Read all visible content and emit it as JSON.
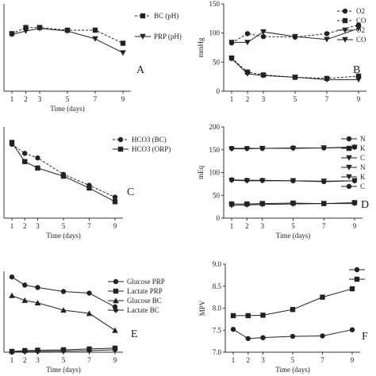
{
  "chart_data": [
    {
      "panel": "A",
      "type": "line",
      "xlabel": "Time (days)",
      "ylabel": "",
      "x": [
        1,
        2,
        3,
        5,
        7,
        9
      ],
      "ylim": [
        0,
        10
      ],
      "yticks": [],
      "legend_position": "top-right",
      "series": [
        {
          "name": "BC (pH)",
          "marker": "square",
          "dash": "dashed",
          "values": [
            6.6,
            7.3,
            7.3,
            7.0,
            7.0,
            5.5
          ]
        },
        {
          "name": "PRP (pH)",
          "marker": "triangle-down",
          "dash": "solid",
          "values": [
            6.5,
            6.9,
            7.2,
            6.9,
            6.0,
            4.4
          ]
        }
      ]
    },
    {
      "panel": "B",
      "type": "line",
      "xlabel": "",
      "ylabel": "mmHg",
      "x": [
        1,
        2,
        3,
        5,
        7,
        9
      ],
      "ylim": [
        0,
        150
      ],
      "yticks": [
        0,
        50,
        100,
        150
      ],
      "legend_position": "top-right",
      "series": [
        {
          "name": "O2",
          "marker": "circle",
          "dash": "dashed",
          "values": [
            83,
            99,
            94,
            93,
            99,
            114
          ]
        },
        {
          "name": "CO",
          "marker": "square",
          "dash": "dashed",
          "values": [
            57,
            33,
            28,
            24,
            22,
            26
          ]
        },
        {
          "name": "O2",
          "marker": "triangle-down",
          "dash": "solid",
          "values": [
            84,
            84,
            102,
            94,
            89,
            108
          ]
        },
        {
          "name": "CO",
          "marker": "triangle-down",
          "dash": "solid",
          "values": [
            56,
            30,
            27,
            24,
            20,
            20
          ]
        }
      ]
    },
    {
      "panel": "C",
      "type": "line",
      "xlabel": "Time (days)",
      "ylabel": "",
      "x": [
        1,
        2,
        3,
        5,
        7,
        9
      ],
      "ylim": [
        0,
        10
      ],
      "yticks": [],
      "legend_position": "top-right",
      "series": [
        {
          "name": "HCO3 (BC)",
          "marker": "circle",
          "dash": "dashed",
          "values": [
            8.1,
            7.1,
            6.6,
            4.8,
            3.6,
            2.3
          ]
        },
        {
          "name": "HCO3 (ORP)",
          "marker": "square",
          "dash": "solid",
          "values": [
            8.3,
            6.2,
            5.5,
            4.6,
            3.3,
            1.8
          ]
        }
      ]
    },
    {
      "panel": "D",
      "type": "line",
      "xlabel": "Time (days)",
      "ylabel": "mEq",
      "x": [
        1,
        2,
        3,
        5,
        7,
        9
      ],
      "ylim": [
        0,
        200
      ],
      "yticks": [
        0,
        50,
        100,
        150,
        200
      ],
      "legend_position": "top-right",
      "series": [
        {
          "name": "N",
          "marker": "circle",
          "dash": "solid",
          "values": [
            153,
            153,
            153,
            154,
            154,
            156
          ]
        },
        {
          "name": "K",
          "marker": "square",
          "dash": "solid",
          "values": [
            31,
            31,
            32,
            33,
            32,
            34
          ]
        },
        {
          "name": "C",
          "marker": "triangle-down",
          "dash": "solid",
          "values": [
            83,
            82,
            82,
            82,
            81,
            82
          ]
        },
        {
          "name": "N",
          "marker": "triangle-down",
          "dash": "solid",
          "values": [
            152,
            152,
            153,
            153,
            154,
            155
          ]
        },
        {
          "name": "K",
          "marker": "triangle-down",
          "dash": "solid",
          "values": [
            28,
            29,
            30,
            31,
            32,
            32
          ]
        },
        {
          "name": "C",
          "marker": "circle",
          "dash": "solid",
          "values": [
            84,
            83,
            83,
            82,
            80,
            82
          ]
        }
      ]
    },
    {
      "panel": "E",
      "type": "line",
      "xlabel": "Time (days)",
      "ylabel": "",
      "x": [
        1,
        2,
        3,
        5,
        7,
        9
      ],
      "ylim": [
        0,
        10
      ],
      "yticks": [],
      "legend_position": "top-right",
      "series": [
        {
          "name": "Glucose PRP",
          "marker": "circle",
          "dash": "solid",
          "values": [
            9.3,
            8.3,
            8.0,
            7.5,
            7.3,
            5.6
          ]
        },
        {
          "name": "Lactate PRP",
          "marker": "square",
          "dash": "solid",
          "values": [
            0.1,
            0.2,
            0.25,
            0.3,
            0.4,
            0.5
          ]
        },
        {
          "name": "Glucose BC",
          "marker": "triangle-up",
          "dash": "solid",
          "values": [
            7.0,
            6.4,
            6.1,
            5.2,
            4.8,
            2.7
          ]
        },
        {
          "name": "Lactate BC",
          "marker": "diamond",
          "dash": "solid",
          "values": [
            0.0,
            0.1,
            0.1,
            0.15,
            0.2,
            0.3
          ]
        }
      ]
    },
    {
      "panel": "F",
      "type": "line",
      "xlabel": "Time (days)",
      "ylabel": "MPV",
      "x": [
        1,
        2,
        3,
        5,
        7,
        9
      ],
      "ylim": [
        7.0,
        9.0
      ],
      "yticks": [
        7.0,
        7.5,
        8.0,
        8.5,
        9.0
      ],
      "legend_position": "top-right",
      "series": [
        {
          "name": "",
          "marker": "circle",
          "dash": "solid",
          "values": [
            7.52,
            7.31,
            7.33,
            7.36,
            7.37,
            7.51
          ]
        },
        {
          "name": "",
          "marker": "square",
          "dash": "solid",
          "values": [
            7.83,
            7.83,
            7.84,
            7.97,
            8.25,
            8.44
          ]
        }
      ]
    }
  ]
}
